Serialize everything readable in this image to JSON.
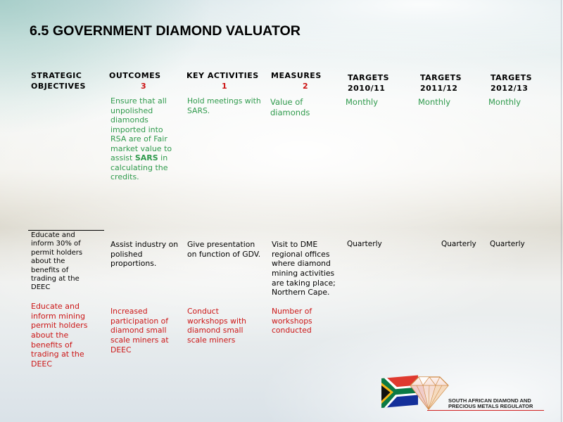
{
  "slide": {
    "title": "6.5 GOVERNMENT DIAMOND VALUATOR"
  },
  "table": {
    "headers": {
      "strategic_objectives": "STRATEGIC\nOBJECTIVES",
      "outcomes": {
        "label": "OUTCOMES",
        "number": "3"
      },
      "key_activities": {
        "label": "KEY ACTIVITIES",
        "number": "1"
      },
      "measures": {
        "label": "MEASURES",
        "number": "2"
      },
      "targets": [
        {
          "label": "TARGETS",
          "period": "2010/11"
        },
        {
          "label": "TARGETS",
          "period": "2011/12"
        },
        {
          "label": "TARGETS",
          "period": "2012/13"
        }
      ]
    },
    "rows": [
      {
        "outcome": {
          "before": "Ensure that all\nunpolished\ndiamonds\nimported into\nRSA are of Fair\nmarket value to\nassist ",
          "emphasis": "SARS",
          "after": " in\ncalculating the\ncredits."
        },
        "key_activity": "Hold meetings with\nSARS.",
        "measure": "Value of\ndiamonds",
        "targets": [
          "Monthly",
          "Monthly",
          "Monthly"
        ]
      },
      {
        "strategic_objective": "Educate and\ninform 30% of\npermit holders\nabout the\nbenefits of\ntrading at the\nDEEC",
        "outcome": "Assist industry on\npolished\nproportions.",
        "key_activity": "Give presentation\non function of GDV.",
        "measure": "Visit to DME\nregional offices\nwhere diamond\nmining activities\nare taking place;\nNorthern Cape.",
        "targets": [
          "Quarterly",
          "Quarterly",
          "Quarterly"
        ]
      },
      {
        "strategic_objective": "Educate and\ninform mining\npermit holders\nabout the\nbenefits of\ntrading at the\nDEEC",
        "outcome": "Increased\nparticipation of\ndiamond small\nscale miners at\nDEEC",
        "key_activity": "Conduct\nworkshops with\ndiamond small\nscale miners",
        "measure": "Number of\nworkshops\nconducted"
      }
    ]
  },
  "logo": {
    "line1": "SOUTH AFRICAN DIAMOND AND",
    "line2": "PRECIOUS METALS REGULATOR",
    "emblem_icons": [
      "south-african-flag-icon",
      "diamond-icon"
    ]
  },
  "colors": {
    "row_1_text": "#2f9a4c",
    "row_3_text": "#cc1616",
    "header_numbers": "#cc1111",
    "logo_rule": "#d02020"
  }
}
